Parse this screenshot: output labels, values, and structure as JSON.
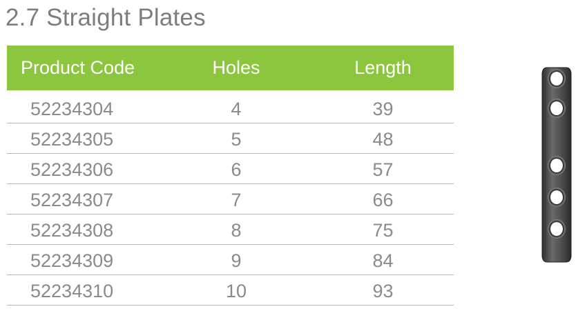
{
  "title": "2.7 Straight Plates",
  "colors": {
    "header_bg": "#8cc63f",
    "title_text": "#7d7d7d",
    "cell_text": "#8a8a8a",
    "row_divider": "#b5b5b5",
    "plate": "#4a4a4a"
  },
  "table": {
    "headers": [
      "Product Code",
      "Holes",
      "Length"
    ],
    "rows": [
      [
        "52234304",
        "4",
        "39"
      ],
      [
        "52234305",
        "5",
        "48"
      ],
      [
        "52234306",
        "6",
        "57"
      ],
      [
        "52234307",
        "7",
        "66"
      ],
      [
        "52234308",
        "8",
        "75"
      ],
      [
        "52234309",
        "9",
        "84"
      ],
      [
        "52234310",
        "10",
        "93"
      ]
    ]
  },
  "image": {
    "icon": "straight-plate-icon",
    "visible_holes": 5
  }
}
